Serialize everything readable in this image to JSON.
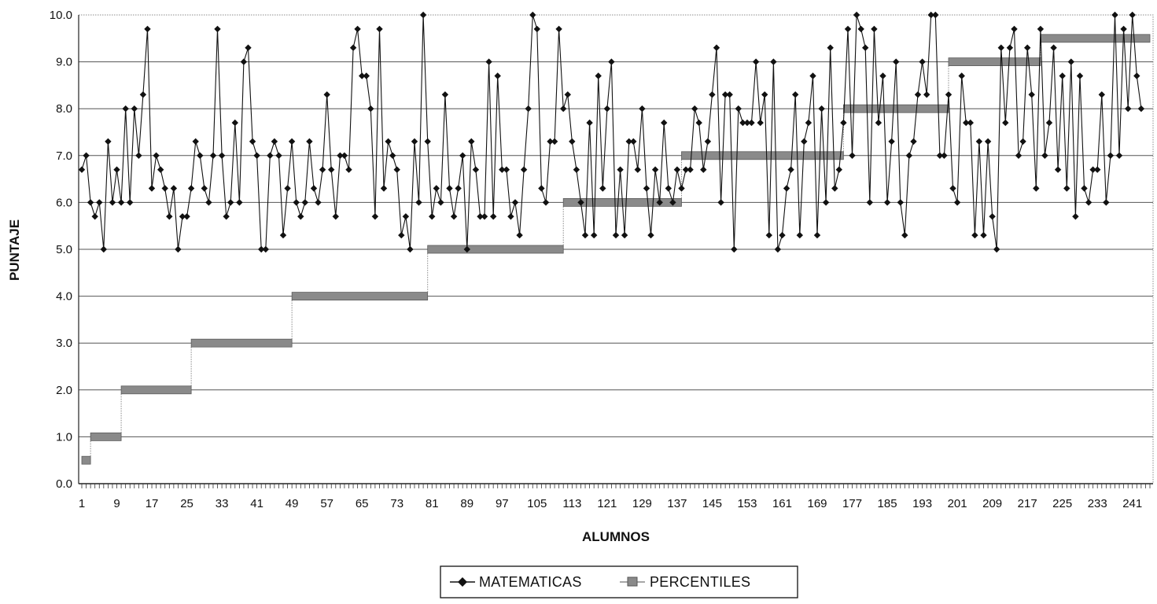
{
  "chart_data": {
    "type": "line",
    "title": "",
    "xlabel": "ALUMNOS",
    "ylabel": "PUNTAJE",
    "ylim": [
      0,
      10
    ],
    "xlim": [
      1,
      245
    ],
    "grid": true,
    "legend_position": "bottom",
    "y_ticks": [
      "0.0",
      "1.0",
      "2.0",
      "3.0",
      "4.0",
      "5.0",
      "6.0",
      "7.0",
      "8.0",
      "9.0",
      "10.0"
    ],
    "x_ticks": [
      "1",
      "9",
      "17",
      "25",
      "33",
      "41",
      "49",
      "57",
      "65",
      "73",
      "81",
      "89",
      "97",
      "105",
      "113",
      "121",
      "129",
      "137",
      "145",
      "153",
      "161",
      "169",
      "177",
      "185",
      "193",
      "201",
      "209",
      "217",
      "225",
      "233",
      "241"
    ],
    "series": [
      {
        "name": "MATEMATICAS",
        "color": "#111111",
        "marker": "diamond",
        "values": [
          6.7,
          7.0,
          6.0,
          5.7,
          6.0,
          5.0,
          7.3,
          6.0,
          6.7,
          6.0,
          8.0,
          6.0,
          8.0,
          7.0,
          8.3,
          9.7,
          6.3,
          7.0,
          6.7,
          6.3,
          5.7,
          6.3,
          5.0,
          5.7,
          5.7,
          6.3,
          7.3,
          7.0,
          6.3,
          6.0,
          7.0,
          9.7,
          7.0,
          5.7,
          6.0,
          7.7,
          6.0,
          9.0,
          9.3,
          7.3,
          7.0,
          5.0,
          5.0,
          7.0,
          7.3,
          7.0,
          5.3,
          6.3,
          7.3,
          6.0,
          5.7,
          6.0,
          7.3,
          6.3,
          6.0,
          6.7,
          8.3,
          6.7,
          5.7,
          7.0,
          7.0,
          6.7,
          9.3,
          9.7,
          8.7,
          8.7,
          8.0,
          5.7,
          9.7,
          6.3,
          7.3,
          7.0,
          6.7,
          5.3,
          5.7,
          5.0,
          7.3,
          6.0,
          10.0,
          7.3,
          5.7,
          6.3,
          6.0,
          8.3,
          6.3,
          5.7,
          6.3,
          7.0,
          5.0,
          7.3,
          6.7,
          5.7,
          5.7,
          9.0,
          5.7,
          8.7,
          6.7,
          6.7,
          5.7,
          6.0,
          5.3,
          6.7,
          8.0,
          10.0,
          9.7,
          6.3,
          6.0,
          7.3,
          7.3,
          9.7,
          8.0,
          8.3,
          7.3,
          6.7,
          6.0,
          5.3,
          7.7,
          5.3,
          8.7,
          6.3,
          8.0,
          9.0,
          5.3,
          6.7,
          5.3,
          7.3,
          7.3,
          6.7,
          8.0,
          6.3,
          5.3,
          6.7,
          6.0,
          7.7,
          6.3,
          6.0,
          6.7,
          6.3,
          6.7,
          6.7,
          8.0,
          7.7,
          6.7,
          7.3,
          8.3,
          9.3,
          6.0,
          8.3,
          8.3,
          5.0,
          8.0,
          7.7,
          7.7,
          7.7,
          9.0,
          7.7,
          8.3,
          5.3,
          9.0,
          5.0,
          5.3,
          6.3,
          6.7,
          8.3,
          5.3,
          7.3,
          7.7,
          8.7,
          5.3,
          8.0,
          6.0,
          9.3,
          6.3,
          6.7,
          7.7,
          9.7,
          7.0,
          10.0,
          9.7,
          9.3,
          6.0,
          9.7,
          7.7,
          8.7,
          6.0,
          7.3,
          9.0,
          6.0,
          5.3,
          7.0,
          7.3,
          8.3,
          9.0,
          8.3,
          10.0,
          10.0,
          7.0,
          7.0,
          8.3,
          6.3,
          6.0,
          8.7,
          7.7,
          7.7,
          5.3,
          7.3,
          5.3,
          7.3,
          5.7,
          5.0,
          9.3,
          7.7,
          9.3,
          9.7,
          7.0,
          7.3,
          9.3,
          8.3,
          6.3,
          9.7,
          7.0,
          7.7,
          9.3,
          6.7,
          8.7,
          6.3,
          9.0,
          5.7,
          8.7,
          6.3,
          6.0,
          6.7,
          6.7,
          8.3,
          6.0,
          7.0,
          10.0,
          7.0,
          9.7,
          8.0,
          10.0,
          8.7,
          8.0
        ]
      },
      {
        "name": "PERCENTILES",
        "color": "#8a8a8a",
        "marker": "square",
        "segments": [
          {
            "x_start": 1,
            "x_end": 3,
            "value": 0.5
          },
          {
            "x_start": 3,
            "x_end": 10,
            "value": 1.0
          },
          {
            "x_start": 10,
            "x_end": 26,
            "value": 2.0
          },
          {
            "x_start": 26,
            "x_end": 49,
            "value": 3.0
          },
          {
            "x_start": 49,
            "x_end": 80,
            "value": 4.0
          },
          {
            "x_start": 80,
            "x_end": 111,
            "value": 5.0
          },
          {
            "x_start": 111,
            "x_end": 138,
            "value": 6.0
          },
          {
            "x_start": 138,
            "x_end": 175,
            "value": 7.0
          },
          {
            "x_start": 175,
            "x_end": 199,
            "value": 8.0
          },
          {
            "x_start": 199,
            "x_end": 220,
            "value": 9.0
          },
          {
            "x_start": 220,
            "x_end": 245,
            "value": 9.5
          }
        ]
      }
    ]
  }
}
